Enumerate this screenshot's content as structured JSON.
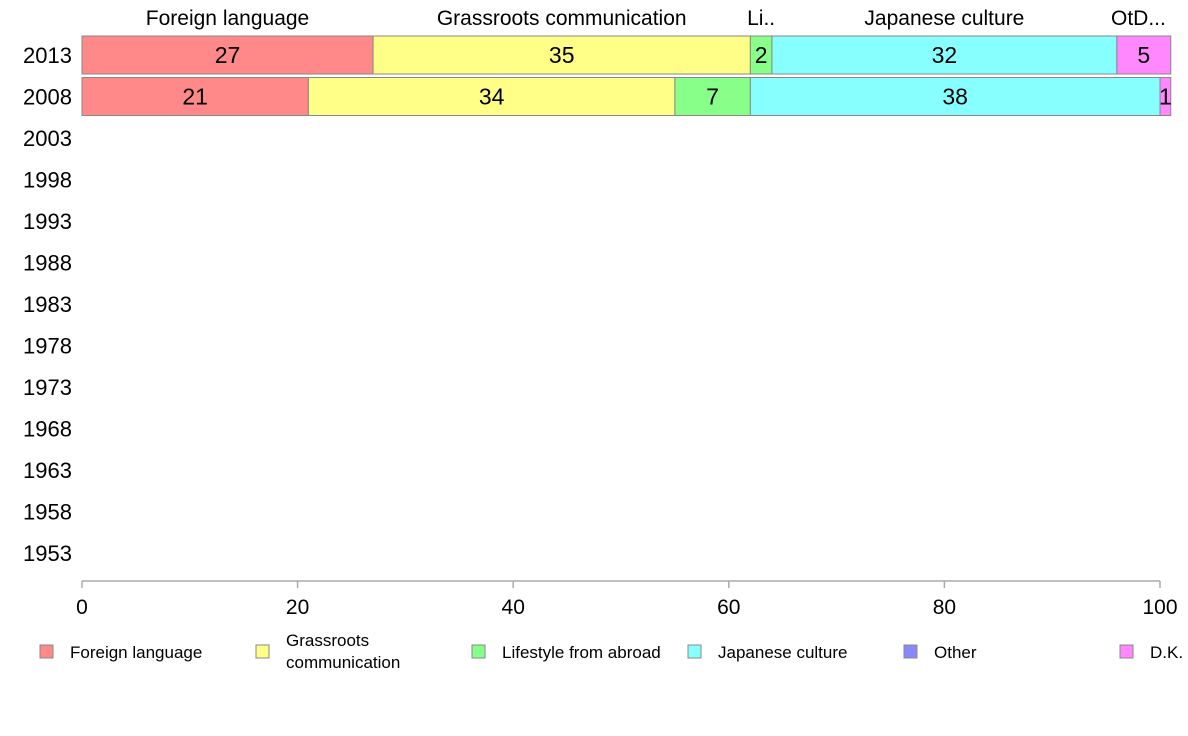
{
  "chart_data": {
    "type": "bar",
    "orientation": "horizontal",
    "stacked": true,
    "title": "",
    "xlabel": "",
    "ylabel": "",
    "xlim": [
      0,
      100
    ],
    "x_ticks": [
      "0",
      "20",
      "40",
      "60",
      "80",
      "100"
    ],
    "categories": [
      "2013",
      "2008",
      "2003",
      "1998",
      "1993",
      "1988",
      "1983",
      "1978",
      "1973",
      "1968",
      "1963",
      "1958",
      "1953"
    ],
    "series": [
      {
        "name": "Foreign language",
        "color": "#ff8888",
        "values": [
          27,
          21,
          null,
          null,
          null,
          null,
          null,
          null,
          null,
          null,
          null,
          null,
          null
        ]
      },
      {
        "name": "Grassroots communication",
        "color": "#ffff88",
        "values": [
          35,
          34,
          null,
          null,
          null,
          null,
          null,
          null,
          null,
          null,
          null,
          null,
          null
        ]
      },
      {
        "name": "Lifestyle from abroad",
        "color": "#88ff88",
        "values": [
          2,
          7,
          null,
          null,
          null,
          null,
          null,
          null,
          null,
          null,
          null,
          null,
          null
        ]
      },
      {
        "name": "Japanese culture",
        "color": "#88ffff",
        "values": [
          32,
          38,
          null,
          null,
          null,
          null,
          null,
          null,
          null,
          null,
          null,
          null,
          null
        ]
      },
      {
        "name": "Other",
        "color": "#8888ff",
        "values": [
          0,
          0,
          null,
          null,
          null,
          null,
          null,
          null,
          null,
          null,
          null,
          null,
          null
        ]
      },
      {
        "name": "D.K.",
        "color": "#ff88ff",
        "values": [
          5,
          1,
          null,
          null,
          null,
          null,
          null,
          null,
          null,
          null,
          null,
          null,
          null
        ]
      }
    ],
    "top_labels": [
      "Foreign language",
      "Grassroots communication",
      "Li..",
      "Japanese culture",
      "OtD..."
    ],
    "legend": {
      "placement": "bottom",
      "entries": [
        {
          "label": "Foreign language",
          "color": "#ff8888"
        },
        {
          "label_lines": [
            "Grassroots",
            "communication"
          ],
          "color": "#ffff88"
        },
        {
          "label": "Lifestyle from abroad",
          "color": "#88ff88"
        },
        {
          "label": "Japanese culture",
          "color": "#88ffff"
        },
        {
          "label": "Other",
          "color": "#8888ff"
        },
        {
          "label": "D.K.",
          "color": "#ff88ff"
        }
      ]
    },
    "grid": false
  }
}
